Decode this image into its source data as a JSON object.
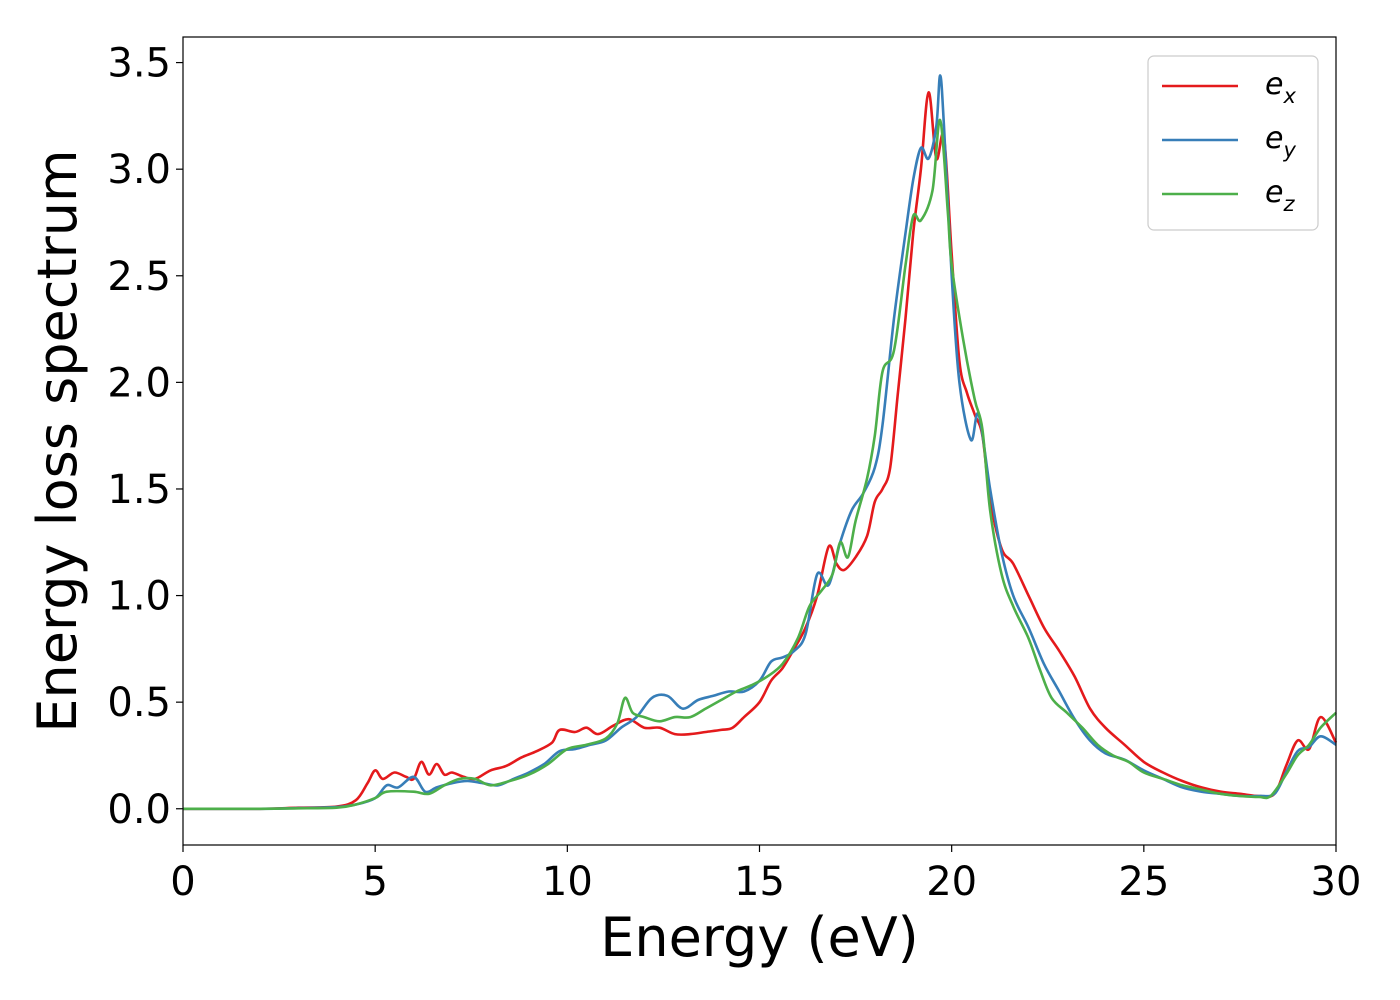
{
  "chart_data": {
    "type": "line",
    "xlabel": "Energy (eV)",
    "ylabel": "Energy loss spectrum",
    "xlim": [
      0,
      30
    ],
    "ylim": [
      -0.17,
      3.62
    ],
    "xticks": [
      0,
      5,
      10,
      15,
      20,
      25,
      30
    ],
    "yticks": [
      0.0,
      0.5,
      1.0,
      1.5,
      2.0,
      2.5,
      3.0,
      3.5
    ],
    "xtick_labels": [
      "0",
      "5",
      "10",
      "15",
      "20",
      "25",
      "30"
    ],
    "ytick_labels": [
      "0.0",
      "0.5",
      "1.0",
      "1.5",
      "2.0",
      "2.5",
      "3.0",
      "3.5"
    ],
    "grid": false,
    "legend_position": "top-right",
    "series": [
      {
        "name": "e_x",
        "label_base": "e",
        "label_sub": "x",
        "color": "#e41a1c",
        "points": [
          [
            0,
            0.0
          ],
          [
            2,
            0.0
          ],
          [
            3,
            0.005
          ],
          [
            4,
            0.01
          ],
          [
            4.5,
            0.04
          ],
          [
            4.8,
            0.12
          ],
          [
            5.0,
            0.18
          ],
          [
            5.2,
            0.14
          ],
          [
            5.5,
            0.17
          ],
          [
            5.8,
            0.15
          ],
          [
            6.0,
            0.14
          ],
          [
            6.2,
            0.22
          ],
          [
            6.4,
            0.16
          ],
          [
            6.6,
            0.21
          ],
          [
            6.8,
            0.16
          ],
          [
            7.0,
            0.17
          ],
          [
            7.3,
            0.15
          ],
          [
            7.6,
            0.14
          ],
          [
            8.0,
            0.18
          ],
          [
            8.4,
            0.2
          ],
          [
            8.8,
            0.24
          ],
          [
            9.2,
            0.27
          ],
          [
            9.6,
            0.31
          ],
          [
            9.8,
            0.37
          ],
          [
            10.2,
            0.36
          ],
          [
            10.5,
            0.38
          ],
          [
            10.8,
            0.35
          ],
          [
            11.2,
            0.39
          ],
          [
            11.6,
            0.42
          ],
          [
            12.0,
            0.38
          ],
          [
            12.4,
            0.38
          ],
          [
            12.8,
            0.35
          ],
          [
            13.2,
            0.35
          ],
          [
            13.6,
            0.36
          ],
          [
            14.0,
            0.37
          ],
          [
            14.3,
            0.38
          ],
          [
            14.6,
            0.43
          ],
          [
            15.0,
            0.5
          ],
          [
            15.3,
            0.6
          ],
          [
            15.6,
            0.66
          ],
          [
            15.9,
            0.75
          ],
          [
            16.2,
            0.85
          ],
          [
            16.5,
            1.0
          ],
          [
            16.8,
            1.23
          ],
          [
            17.0,
            1.15
          ],
          [
            17.2,
            1.12
          ],
          [
            17.5,
            1.18
          ],
          [
            17.8,
            1.28
          ],
          [
            18.0,
            1.44
          ],
          [
            18.2,
            1.5
          ],
          [
            18.4,
            1.6
          ],
          [
            18.6,
            1.95
          ],
          [
            18.8,
            2.3
          ],
          [
            19.0,
            2.7
          ],
          [
            19.2,
            3.0
          ],
          [
            19.4,
            3.36
          ],
          [
            19.6,
            3.05
          ],
          [
            19.8,
            3.15
          ],
          [
            20.0,
            2.6
          ],
          [
            20.2,
            2.1
          ],
          [
            20.4,
            1.95
          ],
          [
            20.6,
            1.85
          ],
          [
            20.8,
            1.75
          ],
          [
            21.0,
            1.45
          ],
          [
            21.3,
            1.22
          ],
          [
            21.6,
            1.15
          ],
          [
            22.0,
            1.0
          ],
          [
            22.4,
            0.85
          ],
          [
            22.8,
            0.74
          ],
          [
            23.2,
            0.62
          ],
          [
            23.6,
            0.47
          ],
          [
            24.0,
            0.38
          ],
          [
            24.5,
            0.3
          ],
          [
            25.0,
            0.22
          ],
          [
            25.5,
            0.17
          ],
          [
            26.0,
            0.13
          ],
          [
            26.5,
            0.1
          ],
          [
            27.0,
            0.08
          ],
          [
            27.5,
            0.07
          ],
          [
            28.0,
            0.06
          ],
          [
            28.4,
            0.07
          ],
          [
            28.7,
            0.2
          ],
          [
            29.0,
            0.32
          ],
          [
            29.3,
            0.28
          ],
          [
            29.6,
            0.43
          ],
          [
            30.0,
            0.31
          ]
        ]
      },
      {
        "name": "e_y",
        "label_base": "e",
        "label_sub": "y",
        "color": "#377eb8",
        "points": [
          [
            0,
            0.0
          ],
          [
            2,
            0.0
          ],
          [
            3,
            0.003
          ],
          [
            4,
            0.008
          ],
          [
            4.5,
            0.02
          ],
          [
            5.0,
            0.05
          ],
          [
            5.3,
            0.11
          ],
          [
            5.6,
            0.1
          ],
          [
            6.0,
            0.15
          ],
          [
            6.3,
            0.08
          ],
          [
            6.6,
            0.1
          ],
          [
            7.0,
            0.12
          ],
          [
            7.4,
            0.13
          ],
          [
            7.8,
            0.12
          ],
          [
            8.2,
            0.11
          ],
          [
            8.6,
            0.14
          ],
          [
            9.0,
            0.17
          ],
          [
            9.4,
            0.21
          ],
          [
            9.8,
            0.27
          ],
          [
            10.2,
            0.28
          ],
          [
            10.6,
            0.3
          ],
          [
            11.0,
            0.32
          ],
          [
            11.4,
            0.38
          ],
          [
            11.8,
            0.43
          ],
          [
            12.2,
            0.52
          ],
          [
            12.6,
            0.53
          ],
          [
            13.0,
            0.47
          ],
          [
            13.4,
            0.51
          ],
          [
            13.8,
            0.53
          ],
          [
            14.2,
            0.55
          ],
          [
            14.6,
            0.55
          ],
          [
            15.0,
            0.6
          ],
          [
            15.3,
            0.69
          ],
          [
            15.6,
            0.71
          ],
          [
            15.9,
            0.74
          ],
          [
            16.2,
            0.82
          ],
          [
            16.5,
            1.1
          ],
          [
            16.8,
            1.05
          ],
          [
            17.1,
            1.25
          ],
          [
            17.4,
            1.4
          ],
          [
            17.7,
            1.48
          ],
          [
            18.0,
            1.6
          ],
          [
            18.2,
            1.8
          ],
          [
            18.5,
            2.3
          ],
          [
            18.8,
            2.7
          ],
          [
            19.0,
            2.95
          ],
          [
            19.2,
            3.1
          ],
          [
            19.4,
            3.05
          ],
          [
            19.6,
            3.2
          ],
          [
            19.7,
            3.44
          ],
          [
            19.8,
            3.2
          ],
          [
            20.0,
            2.5
          ],
          [
            20.2,
            2.0
          ],
          [
            20.5,
            1.73
          ],
          [
            20.7,
            1.85
          ],
          [
            21.0,
            1.5
          ],
          [
            21.3,
            1.2
          ],
          [
            21.6,
            1.0
          ],
          [
            22.0,
            0.85
          ],
          [
            22.4,
            0.68
          ],
          [
            22.8,
            0.55
          ],
          [
            23.2,
            0.42
          ],
          [
            23.6,
            0.32
          ],
          [
            24.0,
            0.26
          ],
          [
            24.5,
            0.23
          ],
          [
            25.0,
            0.18
          ],
          [
            25.5,
            0.14
          ],
          [
            26.0,
            0.1
          ],
          [
            26.5,
            0.08
          ],
          [
            27.0,
            0.07
          ],
          [
            27.5,
            0.06
          ],
          [
            28.0,
            0.06
          ],
          [
            28.4,
            0.07
          ],
          [
            28.7,
            0.17
          ],
          [
            29.0,
            0.27
          ],
          [
            29.3,
            0.29
          ],
          [
            29.6,
            0.34
          ],
          [
            30.0,
            0.3
          ]
        ]
      },
      {
        "name": "e_z",
        "label_base": "e",
        "label_sub": "z",
        "color": "#4daf4a",
        "points": [
          [
            0,
            0.0
          ],
          [
            2,
            0.0
          ],
          [
            3,
            0.002
          ],
          [
            4,
            0.005
          ],
          [
            4.5,
            0.02
          ],
          [
            5.0,
            0.05
          ],
          [
            5.3,
            0.08
          ],
          [
            6.0,
            0.08
          ],
          [
            6.4,
            0.07
          ],
          [
            6.8,
            0.11
          ],
          [
            7.2,
            0.14
          ],
          [
            7.6,
            0.14
          ],
          [
            8.0,
            0.11
          ],
          [
            8.5,
            0.13
          ],
          [
            9.0,
            0.16
          ],
          [
            9.5,
            0.21
          ],
          [
            10.0,
            0.28
          ],
          [
            10.5,
            0.3
          ],
          [
            11.0,
            0.33
          ],
          [
            11.3,
            0.4
          ],
          [
            11.5,
            0.52
          ],
          [
            11.7,
            0.45
          ],
          [
            12.0,
            0.43
          ],
          [
            12.4,
            0.41
          ],
          [
            12.8,
            0.43
          ],
          [
            13.2,
            0.43
          ],
          [
            13.6,
            0.47
          ],
          [
            14.0,
            0.51
          ],
          [
            14.4,
            0.55
          ],
          [
            14.8,
            0.58
          ],
          [
            15.2,
            0.62
          ],
          [
            15.6,
            0.68
          ],
          [
            16.0,
            0.8
          ],
          [
            16.3,
            0.95
          ],
          [
            16.6,
            1.02
          ],
          [
            16.9,
            1.1
          ],
          [
            17.1,
            1.25
          ],
          [
            17.3,
            1.18
          ],
          [
            17.5,
            1.35
          ],
          [
            17.8,
            1.55
          ],
          [
            18.0,
            1.75
          ],
          [
            18.2,
            2.05
          ],
          [
            18.5,
            2.15
          ],
          [
            18.8,
            2.55
          ],
          [
            19.0,
            2.78
          ],
          [
            19.2,
            2.76
          ],
          [
            19.5,
            2.9
          ],
          [
            19.7,
            3.23
          ],
          [
            19.9,
            2.8
          ],
          [
            20.0,
            2.55
          ],
          [
            20.3,
            2.2
          ],
          [
            20.6,
            1.92
          ],
          [
            20.8,
            1.78
          ],
          [
            21.0,
            1.4
          ],
          [
            21.3,
            1.1
          ],
          [
            21.6,
            0.95
          ],
          [
            22.0,
            0.8
          ],
          [
            22.3,
            0.65
          ],
          [
            22.6,
            0.52
          ],
          [
            23.0,
            0.45
          ],
          [
            23.4,
            0.38
          ],
          [
            23.8,
            0.3
          ],
          [
            24.2,
            0.25
          ],
          [
            24.6,
            0.22
          ],
          [
            25.0,
            0.17
          ],
          [
            25.5,
            0.14
          ],
          [
            26.0,
            0.11
          ],
          [
            26.5,
            0.09
          ],
          [
            27.0,
            0.07
          ],
          [
            27.5,
            0.06
          ],
          [
            28.0,
            0.055
          ],
          [
            28.3,
            0.06
          ],
          [
            28.7,
            0.16
          ],
          [
            29.0,
            0.25
          ],
          [
            29.3,
            0.3
          ],
          [
            29.6,
            0.38
          ],
          [
            30.0,
            0.45
          ]
        ]
      }
    ]
  }
}
